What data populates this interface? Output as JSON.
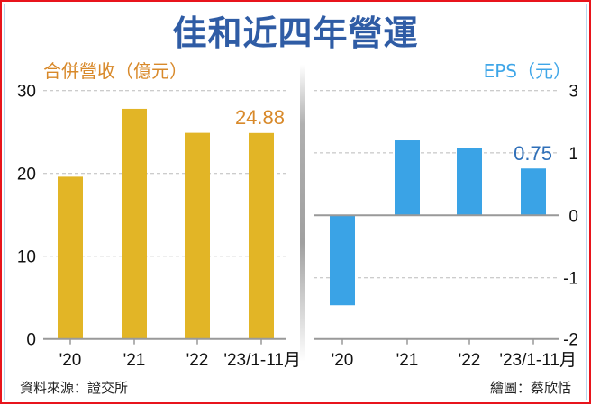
{
  "title": "佳和近四年營運",
  "footer": {
    "source": "資料來源：證交所",
    "credit": "繪圖：蔡欣恬"
  },
  "colors": {
    "revenue_bar": "#e2b526",
    "revenue_label": "#d8892a",
    "eps_bar": "#3aa3e6",
    "eps_label": "#2f6fb8",
    "title": "#2f5ca5",
    "border": "#e8141c"
  },
  "chart_data": [
    {
      "type": "bar",
      "title": "合併營收（億元）",
      "categories": [
        "'20",
        "'21",
        "'22",
        "'23/1-11月"
      ],
      "values": [
        19.6,
        27.8,
        24.9,
        24.88
      ],
      "annotations": [
        {
          "category": "'23/1-11月",
          "text": "24.88"
        }
      ],
      "xlabel": "",
      "ylabel": "合併營收（億元）",
      "ylim": [
        0,
        30
      ],
      "yticks": [
        "0",
        "10",
        "20",
        "30"
      ],
      "grid": true,
      "axis_position": "left"
    },
    {
      "type": "bar",
      "title": "EPS（元）",
      "categories": [
        "'20",
        "'21",
        "'22",
        "'23/1-11月"
      ],
      "values": [
        -1.44,
        1.2,
        1.08,
        0.75
      ],
      "annotations": [
        {
          "category": "'23/1-11月",
          "text": "0.75"
        }
      ],
      "xlabel": "",
      "ylabel": "EPS（元）",
      "ylim": [
        -2,
        3
      ],
      "yticks": [
        "3",
        "1",
        "0",
        "-1",
        "-2"
      ],
      "grid": true,
      "axis_position": "right",
      "note": "axis compressed between 1 and 3"
    }
  ]
}
